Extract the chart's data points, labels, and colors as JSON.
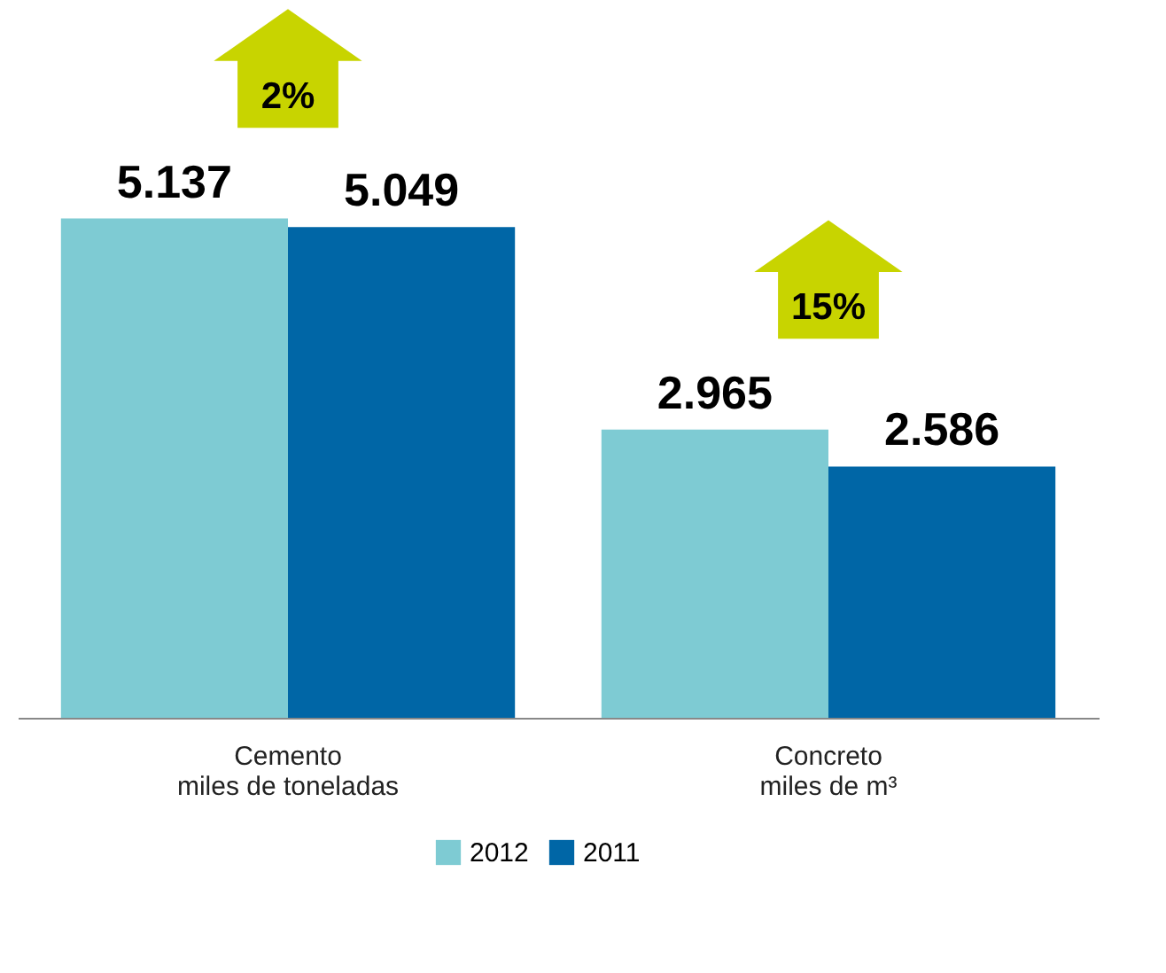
{
  "chart_data": {
    "type": "bar",
    "categories": [
      "Cemento\nmiles de toneladas",
      "Concreto\nmiles de m³"
    ],
    "series": [
      {
        "name": "2012",
        "color": "#7ecbd3",
        "values": [
          5.137,
          2.965
        ]
      },
      {
        "name": "2011",
        "color": "#0066a6",
        "values": [
          5.049,
          2.586
        ]
      }
    ],
    "data_labels": true,
    "annotations": [
      "2%",
      "15%"
    ],
    "legend": "bottom",
    "grid": false
  }
}
